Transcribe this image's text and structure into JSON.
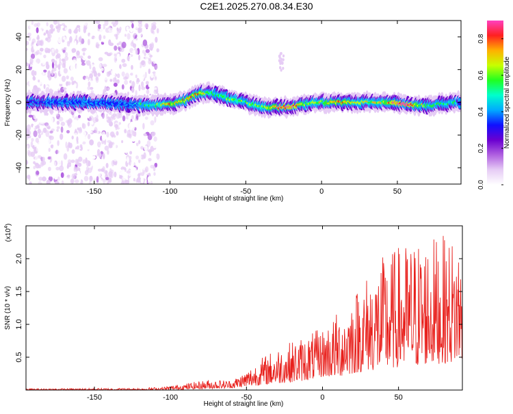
{
  "title": "C2E1.2025.270.08.34.E30",
  "chart_data": [
    {
      "type": "heatmap",
      "title": "C2E1.2025.270.08.34.E30",
      "xlabel": "Height of straight line (km)",
      "ylabel": "Frequency (Hz)",
      "xlim": [
        -195,
        92
      ],
      "ylim": [
        -50,
        50
      ],
      "xticks": [
        -150,
        -100,
        -50,
        0,
        50
      ],
      "yticks": [
        -40,
        -20,
        0,
        20,
        40
      ],
      "colorbar": {
        "label": "Normalized spectral amplitude",
        "range": [
          0.0,
          0.9
        ],
        "ticks": [
          "0.0",
          "0.2",
          "0.4",
          "0.6",
          "0.8"
        ],
        "colormap": [
          "#ffffff",
          "#e6ccf5",
          "#b060e0",
          "#6a00d0",
          "#1010ff",
          "#00aaff",
          "#00ffcc",
          "#20ff20",
          "#c8ff00",
          "#ffb000",
          "#ff2020",
          "#ff40c0"
        ]
      },
      "band": [
        {
          "x": -190,
          "center": 0,
          "amp": 0.35
        },
        {
          "x": -160,
          "center": 0,
          "amp": 0.38
        },
        {
          "x": -130,
          "center": -1,
          "amp": 0.36
        },
        {
          "x": -110,
          "center": -2,
          "amp": 0.55
        },
        {
          "x": -100,
          "center": -1,
          "amp": 0.7
        },
        {
          "x": -90,
          "center": 1,
          "amp": 0.75
        },
        {
          "x": -80,
          "center": 6,
          "amp": 0.7
        },
        {
          "x": -70,
          "center": 5,
          "amp": 0.55
        },
        {
          "x": -60,
          "center": 2,
          "amp": 0.6
        },
        {
          "x": -50,
          "center": 0,
          "amp": 0.55
        },
        {
          "x": -40,
          "center": -3,
          "amp": 0.6
        },
        {
          "x": -30,
          "center": -3,
          "amp": 0.75
        },
        {
          "x": -20,
          "center": -3,
          "amp": 0.85
        },
        {
          "x": -10,
          "center": -1,
          "amp": 0.65
        },
        {
          "x": 0,
          "center": 0,
          "amp": 0.65
        },
        {
          "x": 10,
          "center": 0,
          "amp": 0.7
        },
        {
          "x": 25,
          "center": 0,
          "amp": 0.65
        },
        {
          "x": 40,
          "center": 0,
          "amp": 0.65
        },
        {
          "x": 55,
          "center": -1,
          "amp": 0.9
        },
        {
          "x": 70,
          "center": -2,
          "amp": 0.55
        },
        {
          "x": 90,
          "center": 0,
          "amp": 0.5
        }
      ],
      "noise_region": [
        -195,
        -108
      ],
      "spur": {
        "x": [
          -28,
          -25
        ],
        "y": [
          18,
          30
        ]
      }
    },
    {
      "type": "line",
      "xlabel": "Height of straight line (km)",
      "ylabel": "SNR (10 * v/v)",
      "scale_note": "(x10",
      "scale_exponent": "4",
      "xlim": [
        -195,
        92
      ],
      "ylim": [
        0,
        2.5
      ],
      "xticks": [
        -150,
        -100,
        -50,
        0,
        50
      ],
      "yticks": [
        "0.5",
        "1.0",
        "1.5",
        "2.0"
      ],
      "color": "#e8201c",
      "envelope": {
        "x": [
          -195,
          -120,
          -105,
          -90,
          -75,
          -60,
          -50,
          -40,
          -30,
          -20,
          -10,
          0,
          10,
          20,
          30,
          40,
          50,
          60,
          70,
          80,
          92
        ],
        "max": [
          0.02,
          0.03,
          0.05,
          0.1,
          0.16,
          0.15,
          0.3,
          0.5,
          0.65,
          0.75,
          0.85,
          0.95,
          1.2,
          1.5,
          1.8,
          2.05,
          2.2,
          2.3,
          2.35,
          2.35,
          2.3
        ],
        "min": [
          0.0,
          0.0,
          0.0,
          0.01,
          0.02,
          0.03,
          0.05,
          0.08,
          0.1,
          0.12,
          0.15,
          0.2,
          0.2,
          0.25,
          0.3,
          0.3,
          0.35,
          0.35,
          0.4,
          0.4,
          0.45
        ]
      }
    }
  ]
}
